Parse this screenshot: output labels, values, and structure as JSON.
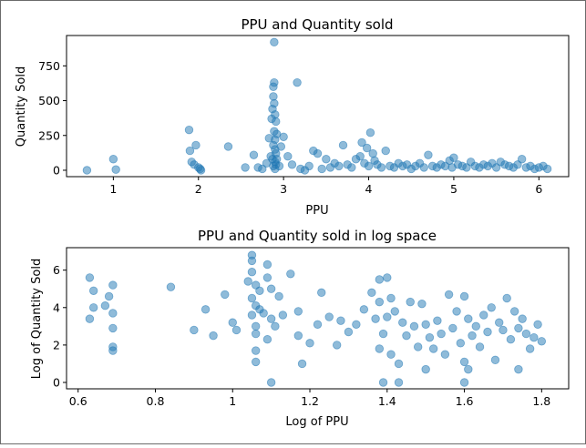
{
  "colors": {
    "marker": "#1f77b4",
    "axes": "#000000",
    "frame": "#6b6b6b"
  },
  "chart_data": [
    {
      "type": "scatter",
      "title": "PPU and Quantity sold",
      "xlabel": "PPU",
      "ylabel": "Quantity Sold",
      "xlim": [
        0.45,
        6.35
      ],
      "ylim": [
        -46,
        968
      ],
      "xticks": [
        1,
        2,
        3,
        4,
        5,
        6
      ],
      "yticks": [
        0,
        250,
        500,
        750
      ],
      "grid": false,
      "series": [
        {
          "x": [
            0.69,
            1.0,
            1.03,
            1.89,
            1.9,
            1.92,
            1.95,
            1.97,
            2.0,
            2.02,
            2.03,
            2.35,
            2.55,
            2.65,
            2.7,
            2.75,
            2.8,
            2.83,
            2.85,
            2.86,
            2.87,
            2.87,
            2.88,
            2.88,
            2.88,
            2.88,
            2.89,
            2.89,
            2.89,
            2.89,
            2.9,
            2.9,
            2.9,
            2.9,
            2.9,
            2.91,
            2.91,
            2.91,
            2.92,
            2.92,
            2.95,
            2.97,
            3.0,
            3.05,
            3.1,
            3.16,
            3.2,
            3.25,
            3.3,
            3.35,
            3.4,
            3.45,
            3.5,
            3.55,
            3.6,
            3.65,
            3.7,
            3.75,
            3.8,
            3.85,
            3.9,
            3.92,
            3.95,
            3.98,
            4.0,
            4.02,
            4.05,
            4.07,
            4.1,
            4.15,
            4.2,
            4.25,
            4.3,
            4.35,
            4.4,
            4.45,
            4.5,
            4.55,
            4.6,
            4.65,
            4.7,
            4.75,
            4.8,
            4.85,
            4.9,
            4.95,
            4.98,
            5.0,
            5.05,
            5.1,
            5.15,
            5.2,
            5.25,
            5.3,
            5.35,
            5.4,
            5.45,
            5.5,
            5.55,
            5.6,
            5.65,
            5.7,
            5.75,
            5.8,
            5.85,
            5.9,
            5.95,
            6.0,
            6.05,
            6.1
          ],
          "y": [
            0,
            80,
            5,
            290,
            140,
            60,
            40,
            180,
            20,
            10,
            0,
            170,
            20,
            110,
            20,
            10,
            50,
            230,
            100,
            370,
            440,
            80,
            30,
            600,
            530,
            180,
            920,
            630,
            480,
            280,
            400,
            220,
            150,
            60,
            10,
            350,
            120,
            40,
            260,
            80,
            30,
            170,
            240,
            100,
            40,
            630,
            10,
            0,
            30,
            140,
            120,
            10,
            80,
            20,
            50,
            30,
            180,
            40,
            20,
            80,
            100,
            200,
            50,
            160,
            30,
            270,
            120,
            70,
            40,
            20,
            140,
            30,
            20,
            50,
            30,
            40,
            10,
            30,
            50,
            20,
            110,
            30,
            20,
            40,
            30,
            70,
            20,
            90,
            40,
            30,
            20,
            60,
            30,
            20,
            40,
            30,
            50,
            20,
            60,
            40,
            30,
            20,
            40,
            80,
            20,
            30,
            10,
            20,
            30,
            10
          ]
        }
      ]
    },
    {
      "type": "scatter",
      "title": "PPU and Quantity sold in log space",
      "xlabel": "Log of PPU",
      "ylabel": "Log of Quantity Sold",
      "xlim": [
        0.57,
        1.87
      ],
      "ylim": [
        -0.34,
        7.2
      ],
      "xticks": [
        0.6,
        0.8,
        1.0,
        1.2,
        1.4,
        1.6,
        1.8
      ],
      "yticks": [
        0,
        2,
        4,
        6
      ],
      "grid": false,
      "series": [
        {
          "x": [
            0.63,
            0.63,
            0.64,
            0.64,
            0.67,
            0.68,
            0.69,
            0.69,
            0.69,
            0.69,
            0.69,
            0.84,
            0.9,
            0.93,
            0.95,
            0.98,
            1.0,
            1.01,
            1.04,
            1.05,
            1.05,
            1.05,
            1.05,
            1.05,
            1.06,
            1.06,
            1.06,
            1.06,
            1.06,
            1.06,
            1.07,
            1.07,
            1.08,
            1.09,
            1.09,
            1.09,
            1.1,
            1.1,
            1.1,
            1.11,
            1.12,
            1.13,
            1.15,
            1.17,
            1.17,
            1.18,
            1.2,
            1.22,
            1.23,
            1.25,
            1.27,
            1.28,
            1.3,
            1.32,
            1.34,
            1.36,
            1.37,
            1.38,
            1.38,
            1.38,
            1.39,
            1.39,
            1.4,
            1.4,
            1.41,
            1.41,
            1.42,
            1.43,
            1.43,
            1.44,
            1.45,
            1.46,
            1.47,
            1.48,
            1.49,
            1.5,
            1.5,
            1.51,
            1.52,
            1.53,
            1.54,
            1.55,
            1.56,
            1.57,
            1.58,
            1.59,
            1.6,
            1.6,
            1.6,
            1.61,
            1.61,
            1.62,
            1.63,
            1.64,
            1.65,
            1.66,
            1.67,
            1.68,
            1.69,
            1.7,
            1.71,
            1.72,
            1.73,
            1.74,
            1.74,
            1.75,
            1.76,
            1.77,
            1.78,
            1.79,
            1.8
          ],
          "y": [
            5.6,
            3.4,
            4.0,
            4.9,
            4.1,
            4.6,
            5.2,
            3.7,
            2.9,
            1.9,
            1.7,
            5.1,
            2.8,
            3.9,
            2.5,
            4.7,
            3.2,
            2.8,
            5.4,
            6.8,
            6.5,
            5.9,
            4.5,
            3.6,
            2.6,
            1.1,
            5.2,
            4.1,
            3.0,
            1.7,
            4.9,
            3.9,
            3.7,
            6.3,
            5.6,
            2.3,
            5.0,
            3.4,
            0.0,
            3.0,
            4.6,
            3.6,
            5.8,
            3.8,
            2.5,
            1.0,
            2.1,
            3.1,
            4.8,
            3.5,
            2.0,
            3.3,
            2.7,
            3.1,
            3.9,
            4.8,
            3.4,
            1.8,
            5.5,
            4.3,
            2.6,
            0.0,
            5.6,
            3.5,
            1.5,
            4.5,
            3.8,
            0.0,
            1.0,
            3.2,
            2.5,
            4.3,
            3.0,
            1.9,
            4.2,
            0.7,
            3.1,
            2.4,
            1.8,
            3.3,
            2.6,
            1.5,
            4.7,
            2.9,
            3.8,
            2.1,
            4.6,
            1.1,
            0.0,
            3.4,
            0.7,
            2.5,
            3.0,
            1.9,
            3.6,
            2.7,
            4.0,
            1.2,
            3.2,
            2.8,
            4.5,
            2.3,
            3.8,
            0.7,
            2.9,
            3.4,
            2.6,
            1.8,
            2.4,
            3.1,
            2.2
          ]
        }
      ]
    }
  ]
}
